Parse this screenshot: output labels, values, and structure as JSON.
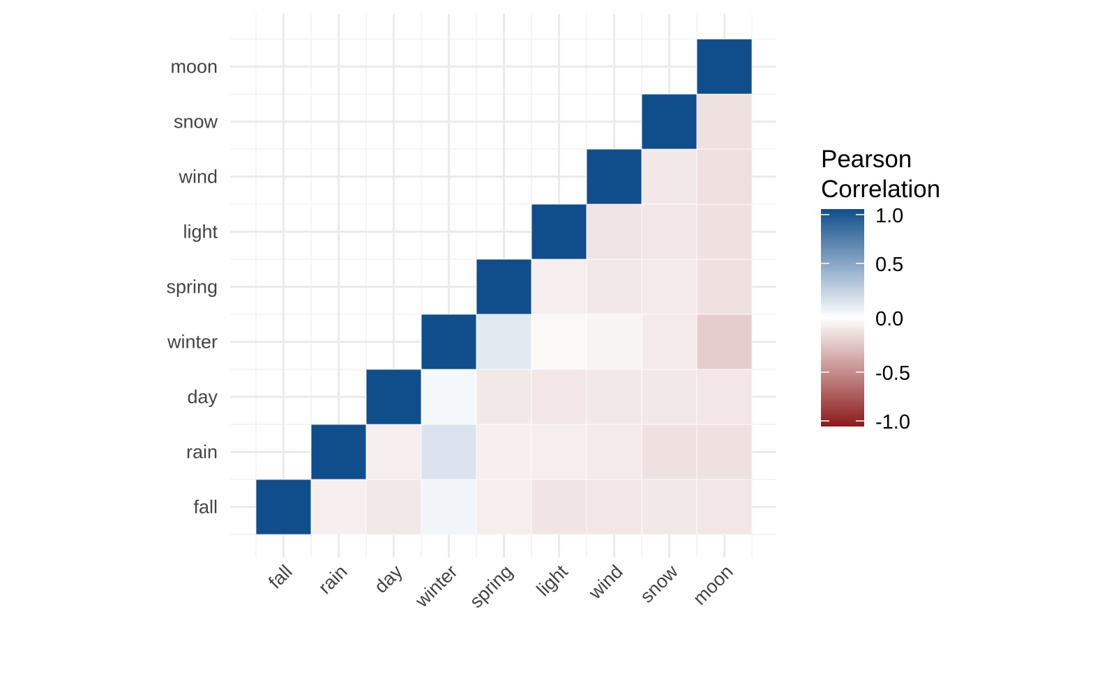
{
  "chart_data": {
    "type": "heatmap",
    "title": "",
    "xlabel": "",
    "ylabel": "",
    "variables": [
      "fall",
      "rain",
      "day",
      "winter",
      "spring",
      "light",
      "wind",
      "snow",
      "moon"
    ],
    "triangle": "upper (shown cells where column index >= row index; rows bottom-to-top)",
    "values": [
      [
        1.0,
        -0.07,
        -0.1,
        0.06,
        -0.08,
        -0.12,
        -0.11,
        -0.1,
        -0.11
      ],
      [
        null,
        1.0,
        -0.08,
        0.15,
        -0.07,
        -0.08,
        -0.09,
        -0.13,
        -0.13
      ],
      [
        null,
        null,
        1.0,
        0.04,
        -0.1,
        -0.11,
        -0.1,
        -0.1,
        -0.11
      ],
      [
        null,
        null,
        null,
        1.0,
        0.12,
        -0.03,
        -0.05,
        -0.09,
        -0.22
      ],
      [
        null,
        null,
        null,
        null,
        1.0,
        -0.08,
        -0.1,
        -0.09,
        -0.13
      ],
      [
        null,
        null,
        null,
        null,
        null,
        1.0,
        -0.12,
        -0.11,
        -0.13
      ],
      [
        null,
        null,
        null,
        null,
        null,
        null,
        1.0,
        -0.1,
        -0.14
      ],
      [
        null,
        null,
        null,
        null,
        null,
        null,
        null,
        1.0,
        -0.13
      ],
      [
        null,
        null,
        null,
        null,
        null,
        null,
        null,
        null,
        1.0
      ]
    ],
    "color_scale": {
      "low": "#8B1A1A",
      "mid": "#FFFFFF",
      "high": "#104E8B",
      "limits": [
        -1,
        1
      ]
    },
    "legend": {
      "title_lines": [
        "Pearson",
        "Correlation"
      ],
      "ticks": [
        "1.0",
        "0.5",
        "0.0",
        "-0.5",
        "-1.0"
      ],
      "tick_values": [
        1,
        0.5,
        0,
        -0.5,
        -1
      ],
      "position": "right"
    },
    "grid": true
  }
}
